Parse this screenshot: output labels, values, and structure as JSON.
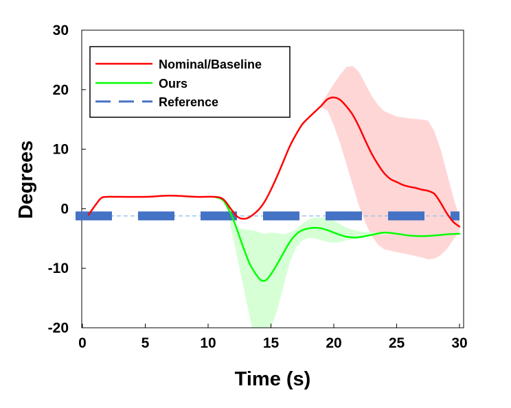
{
  "chart_data": {
    "type": "line",
    "title": "",
    "xlabel": "Time (s)",
    "ylabel": "Degrees",
    "xlim": [
      0,
      30
    ],
    "ylim": [
      -20,
      30
    ],
    "xticks": [
      0,
      5,
      10,
      15,
      20,
      25,
      30
    ],
    "yticks": [
      30,
      20,
      10,
      0,
      -10,
      -20
    ],
    "xtick_labels": [
      "0",
      "5",
      "10",
      "15",
      "20",
      "25",
      "30"
    ],
    "ytick_labels": [
      "30",
      "20",
      "10",
      "0",
      "-10",
      "-20"
    ],
    "legend_position": "top-left",
    "series": [
      {
        "name": "Nominal/Baseline",
        "color": "#ff0000",
        "band_color": "#ffd6d6",
        "x": [
          0.5,
          1,
          1.5,
          2,
          3,
          5,
          7,
          9,
          10.5,
          11.2,
          11.8,
          12.3,
          12.8,
          13.3,
          14,
          14.5,
          15,
          15.5,
          16,
          16.5,
          17,
          17.5,
          18,
          18.5,
          19,
          19.5,
          20,
          20.5,
          21,
          21.5,
          22,
          22.5,
          23,
          23.5,
          24,
          24.5,
          25,
          25.5,
          26,
          26.5,
          27,
          27.5,
          28,
          28.5,
          29,
          29.5,
          30
        ],
        "y": [
          -1,
          0.5,
          1.8,
          2.0,
          2.0,
          2.0,
          2.2,
          2.0,
          2.0,
          1.6,
          0,
          -1.3,
          -1.7,
          -1.4,
          -0.2,
          1.2,
          3.2,
          5.5,
          8,
          10.5,
          12.5,
          14.2,
          15.3,
          16.3,
          17.3,
          18.4,
          18.7,
          18.3,
          17.2,
          15.8,
          13.8,
          11.5,
          9.3,
          7.5,
          6,
          5,
          4.5,
          4,
          3.7,
          3.5,
          3.2,
          3,
          2.5,
          1,
          -0.8,
          -2.2,
          -3
        ]
      },
      {
        "name": "Ours",
        "color": "#00ff00",
        "band_color": "#d6ffd6",
        "x": [
          10.5,
          11.2,
          11.8,
          12.3,
          12.8,
          13.3,
          13.8,
          14.2,
          14.6,
          15,
          15.5,
          16,
          16.5,
          17,
          17.5,
          18,
          18.5,
          19,
          19.5,
          20,
          20.5,
          21,
          21.5,
          22,
          23,
          24,
          25,
          26,
          27,
          28,
          29,
          30
        ],
        "y": [
          2.0,
          1.4,
          -0.8,
          -3.5,
          -6.5,
          -9.2,
          -11,
          -12,
          -12,
          -11,
          -9.3,
          -7.4,
          -5.6,
          -4.3,
          -3.6,
          -3.3,
          -3.2,
          -3.3,
          -3.6,
          -4,
          -4.4,
          -4.7,
          -4.8,
          -4.8,
          -4.4,
          -4,
          -4.2,
          -4.5,
          -4.6,
          -4.5,
          -4.3,
          -4.2
        ]
      },
      {
        "name": "Reference",
        "color": "#4472c4",
        "x": [
          0,
          30
        ],
        "y": [
          -1.2,
          -1.2
        ]
      }
    ],
    "bands": [
      {
        "name": "Nominal/Baseline spread",
        "x": [
          19,
          19.5,
          20,
          20.5,
          21,
          21.5,
          22,
          22.5,
          23,
          23.5,
          24,
          25,
          26,
          27,
          27.5,
          28,
          28.5,
          29,
          29.5,
          30
        ],
        "upper": [
          17.6,
          19.3,
          21,
          22.5,
          23.8,
          24,
          23,
          21,
          19,
          17.5,
          16.4,
          15.5,
          15.2,
          15,
          14.8,
          13,
          10,
          6,
          2,
          -1.5
        ],
        "lower": [
          17,
          16.5,
          14,
          11,
          7.5,
          4,
          0.5,
          -2.3,
          -4.5,
          -6,
          -6.8,
          -7.3,
          -7.7,
          -8.2,
          -8.5,
          -8.4,
          -7.8,
          -6.8,
          -5.2,
          -3.8
        ]
      },
      {
        "name": "Ours spread",
        "x": [
          11.5,
          12,
          12.5,
          13,
          13.5,
          14,
          14.5,
          15,
          15.5,
          16,
          16.5,
          17,
          17.5,
          18,
          18.5,
          19,
          19.5,
          20,
          20.5,
          21,
          22,
          23,
          24,
          25
        ],
        "upper": [
          1,
          -2,
          -3.3,
          -3.5,
          -3.6,
          -3.9,
          -4.2,
          -4,
          -4.1,
          -4.3,
          -4,
          -3.5,
          -2.5,
          -1.8,
          -1.5,
          -1.5,
          -1.5,
          -2,
          -2.6,
          -3.2,
          -3.8,
          -4,
          -4,
          -4
        ],
        "lower": [
          0,
          -5,
          -10,
          -15,
          -20,
          -20,
          -20,
          -20,
          -17,
          -13,
          -9,
          -6.5,
          -5.3,
          -4.9,
          -5,
          -5.3,
          -5.6,
          -5.7,
          -5.6,
          -5.3,
          -5,
          -4.5,
          -4.3,
          -4.2
        ]
      }
    ]
  }
}
